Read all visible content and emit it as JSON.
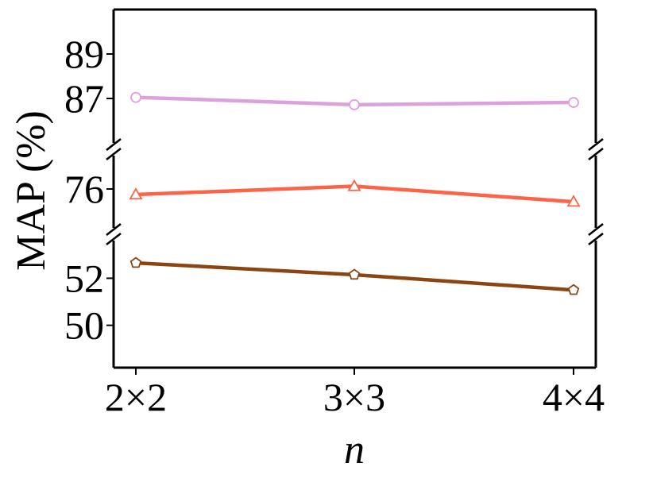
{
  "chart_data": {
    "type": "line",
    "xlabel": "n",
    "ylabel": "MAP (%)",
    "categories": [
      "2×2",
      "3×3",
      "4×4"
    ],
    "y_axis_breaks": true,
    "grid": false,
    "panels": [
      {
        "ylim": [
          85.0,
          91.0
        ],
        "yticks": [
          "87",
          "89"
        ],
        "series": [
          {
            "values": [
              87.05,
              86.72,
              86.82
            ],
            "color": "#DDA0DD",
            "marker": "circle"
          }
        ]
      },
      {
        "ylim": [
          75.3,
          76.6
        ],
        "yticks": [
          "76"
        ],
        "series": [
          {
            "values": [
              75.9,
              76.05,
              75.77
            ],
            "color": "#FF6347",
            "marker": "triangle"
          }
        ]
      },
      {
        "ylim": [
          48.2,
          53.6
        ],
        "yticks": [
          "50",
          "52"
        ],
        "series": [
          {
            "values": [
              52.65,
              52.15,
              51.5
            ],
            "color": "#8B4513",
            "marker": "pentagon"
          }
        ]
      }
    ]
  }
}
